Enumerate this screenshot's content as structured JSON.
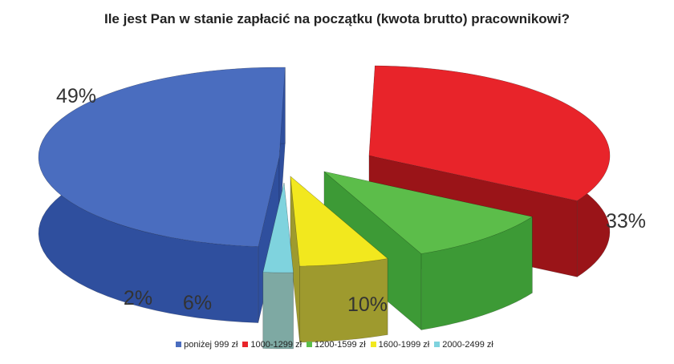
{
  "chart_data": {
    "type": "pie",
    "title": "Ile jest Pan w stanie zapłacić na początku (kwota brutto) pracownikowi?",
    "categories": [
      "poniżej 999 zł",
      "1000-1299 zł",
      "1200-1599 zł",
      "1600-1999 zł",
      "2000-2499 zł"
    ],
    "values": [
      49,
      33,
      10,
      6,
      2
    ],
    "value_labels": [
      "49%",
      "33%",
      "10%",
      "6%",
      "2%"
    ],
    "colors": [
      "#4a6dbf",
      "#e8242a",
      "#5cbd4a",
      "#f2e81e",
      "#7fd3de"
    ],
    "side_colors": [
      "#2f4f9e",
      "#9a1418",
      "#3d9a36",
      "#9e9a2e",
      "#7ea9a3"
    ],
    "legend_position": "bottom",
    "style": "3d-exploded"
  }
}
